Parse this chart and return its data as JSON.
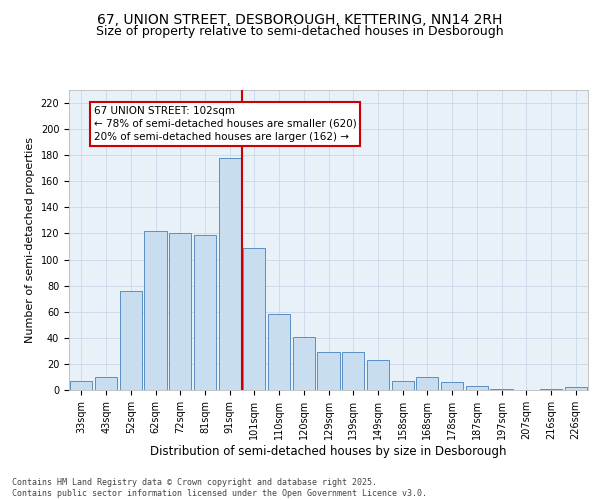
{
  "title_line1": "67, UNION STREET, DESBOROUGH, KETTERING, NN14 2RH",
  "title_line2": "Size of property relative to semi-detached houses in Desborough",
  "xlabel": "Distribution of semi-detached houses by size in Desborough",
  "ylabel": "Number of semi-detached properties",
  "categories": [
    "33sqm",
    "43sqm",
    "52sqm",
    "62sqm",
    "72sqm",
    "81sqm",
    "91sqm",
    "101sqm",
    "110sqm",
    "120sqm",
    "129sqm",
    "139sqm",
    "149sqm",
    "158sqm",
    "168sqm",
    "178sqm",
    "187sqm",
    "197sqm",
    "207sqm",
    "216sqm",
    "226sqm"
  ],
  "values": [
    7,
    10,
    76,
    122,
    120,
    119,
    178,
    109,
    58,
    41,
    29,
    29,
    23,
    7,
    10,
    6,
    3,
    1,
    0,
    1,
    2
  ],
  "bar_color": "#c9ddf0",
  "bar_edge_color": "#5a8fc2",
  "vline_color": "#cc0000",
  "annotation_title": "67 UNION STREET: 102sqm",
  "annotation_line1": "← 78% of semi-detached houses are smaller (620)",
  "annotation_line2": "20% of semi-detached houses are larger (162) →",
  "annotation_box_color": "#cc0000",
  "annotation_text_color": "#000000",
  "annotation_bg_color": "#ffffff",
  "ylim": [
    0,
    230
  ],
  "yticks": [
    0,
    20,
    40,
    60,
    80,
    100,
    120,
    140,
    160,
    180,
    200,
    220
  ],
  "grid_color": "#c8d8e8",
  "bg_color": "#e8f0f8",
  "footer_line1": "Contains HM Land Registry data © Crown copyright and database right 2025.",
  "footer_line2": "Contains public sector information licensed under the Open Government Licence v3.0.",
  "title_fontsize": 10,
  "subtitle_fontsize": 9,
  "tick_fontsize": 7,
  "ylabel_fontsize": 8,
  "xlabel_fontsize": 8.5,
  "footer_fontsize": 6,
  "annot_fontsize": 7.5
}
